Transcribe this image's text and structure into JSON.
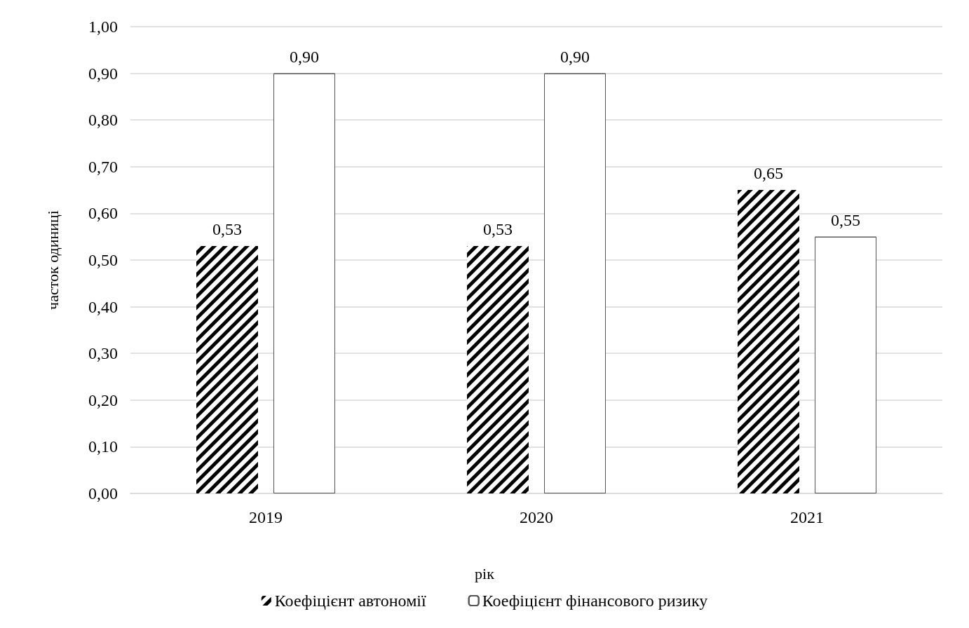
{
  "chart_data": {
    "type": "bar",
    "xlabel": "рік",
    "ylabel": "часток одиниці",
    "categories": [
      "2019",
      "2020",
      "2021"
    ],
    "series": [
      {
        "name": "Коефіцієнт автономії",
        "color": "#000000",
        "values": [
          0.53,
          0.53,
          0.65
        ],
        "value_labels": [
          "0,53",
          "0,53",
          "0,65"
        ]
      },
      {
        "name": "Коефіцієнт фінансового ризику",
        "color": "#555555",
        "values": [
          0.9,
          0.9,
          0.55
        ],
        "value_labels": [
          "0,90",
          "0,90",
          "0,55"
        ]
      }
    ],
    "ylim": [
      0,
      1
    ],
    "yticks": [
      {
        "value": 0,
        "label": "0,00"
      },
      {
        "value": 0.1,
        "label": "0,10"
      },
      {
        "value": 0.2,
        "label": "0,20"
      },
      {
        "value": 0.3,
        "label": "0,30"
      },
      {
        "value": 0.4,
        "label": "0,40"
      },
      {
        "value": 0.5,
        "label": "0,50"
      },
      {
        "value": 0.6,
        "label": "0,60"
      },
      {
        "value": 0.7,
        "label": "0,70"
      },
      {
        "value": 0.8,
        "label": "0,80"
      },
      {
        "value": 0.9,
        "label": "0,90"
      },
      {
        "value": 1,
        "label": "1,00"
      }
    ],
    "grid": "y",
    "legend": "bottom"
  }
}
